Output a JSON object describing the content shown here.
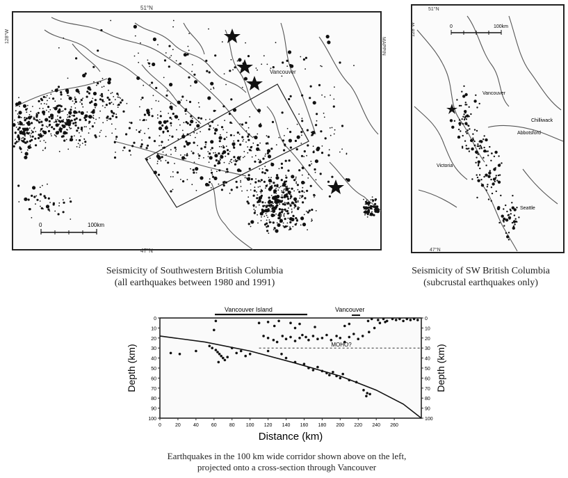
{
  "map_left": {
    "corner_label_top": "51°N",
    "corner_label_bottom": "47°N",
    "side_label_left": "128°W",
    "side_label_right": "MAPPIN",
    "city_label": "Vancouver",
    "scale": {
      "zero": "0",
      "label": "100km"
    },
    "caption_line1": "Seismicity of Southwestern British Columbia",
    "caption_line2": "(all earthquakes between 1980 and 1991)"
  },
  "map_right": {
    "corner_label_top": "51°N",
    "corner_label_bottom": "47°N",
    "side_label_left": "128°W",
    "scale": {
      "zero": "0",
      "label": "100km"
    },
    "cities": [
      "Vancouver",
      "Chilliwack",
      "Abbotsford",
      "Victoria",
      "Seattle"
    ],
    "caption_line1": "Seismicity of SW British Columbia",
    "caption_line2": "(subcrustal earthquakes only)"
  },
  "cross_section": {
    "top_labels": [
      "Vancouver Island",
      "Vancouver"
    ],
    "moho_label": "MOHO?",
    "caption_line1": "Earthquakes in the 100 km wide corridor shown above on the left,",
    "caption_line2": "projected onto a cross-section through Vancouver"
  },
  "chart_data": {
    "type": "scatter",
    "title": "",
    "xlabel": "Distance (km)",
    "ylabel": "Depth (km)",
    "ylabel_right": "Depth (km)",
    "xlim": [
      0,
      290
    ],
    "ylim": [
      0,
      100
    ],
    "y_inverted": true,
    "x_ticks": [
      "0",
      "20",
      "40",
      "60",
      "80",
      "100",
      "120",
      "140",
      "160",
      "180",
      "200",
      "220",
      "240",
      "260"
    ],
    "y_ticks": [
      "0",
      "10",
      "20",
      "30",
      "40",
      "50",
      "60",
      "70",
      "80",
      "90",
      "100"
    ],
    "y_ticks_right": [
      "0",
      "10",
      "20",
      "30",
      "40",
      "50",
      "60",
      "70",
      "80",
      "90",
      "100"
    ],
    "slab_curve": [
      [
        0,
        18
      ],
      [
        50,
        24
      ],
      [
        100,
        33
      ],
      [
        150,
        45
      ],
      [
        200,
        58
      ],
      [
        240,
        72
      ],
      [
        270,
        86
      ],
      [
        290,
        100
      ]
    ],
    "moho_line": [
      [
        110,
        30
      ],
      [
        290,
        30
      ]
    ],
    "points": [
      [
        12,
        35
      ],
      [
        22,
        36
      ],
      [
        40,
        33
      ],
      [
        55,
        28
      ],
      [
        58,
        30
      ],
      [
        62,
        32
      ],
      [
        64,
        34
      ],
      [
        66,
        36
      ],
      [
        68,
        38
      ],
      [
        70,
        40
      ],
      [
        72,
        42
      ],
      [
        65,
        44
      ],
      [
        75,
        39
      ],
      [
        80,
        30
      ],
      [
        85,
        35
      ],
      [
        90,
        33
      ],
      [
        95,
        38
      ],
      [
        100,
        36
      ],
      [
        60,
        12
      ],
      [
        62,
        3
      ],
      [
        110,
        5
      ],
      [
        120,
        4
      ],
      [
        127,
        8
      ],
      [
        132,
        3
      ],
      [
        145,
        5
      ],
      [
        115,
        18
      ],
      [
        120,
        20
      ],
      [
        126,
        22
      ],
      [
        130,
        24
      ],
      [
        136,
        18
      ],
      [
        140,
        21
      ],
      [
        145,
        19
      ],
      [
        150,
        23
      ],
      [
        155,
        20
      ],
      [
        158,
        17
      ],
      [
        162,
        19
      ],
      [
        165,
        22
      ],
      [
        170,
        18
      ],
      [
        175,
        21
      ],
      [
        180,
        20
      ],
      [
        185,
        17
      ],
      [
        190,
        22
      ],
      [
        196,
        18
      ],
      [
        200,
        20
      ],
      [
        205,
        24
      ],
      [
        210,
        19
      ],
      [
        215,
        16
      ],
      [
        220,
        21
      ],
      [
        225,
        18
      ],
      [
        232,
        14
      ],
      [
        238,
        10
      ],
      [
        231,
        3
      ],
      [
        235,
        1
      ],
      [
        242,
        2
      ],
      [
        248,
        1
      ],
      [
        252,
        3
      ],
      [
        258,
        1
      ],
      [
        262,
        2
      ],
      [
        266,
        1
      ],
      [
        270,
        3
      ],
      [
        274,
        1
      ],
      [
        278,
        2
      ],
      [
        282,
        1
      ],
      [
        286,
        2
      ],
      [
        244,
        5
      ],
      [
        250,
        4
      ],
      [
        160,
        46
      ],
      [
        165,
        50
      ],
      [
        170,
        52
      ],
      [
        175,
        49
      ],
      [
        180,
        53
      ],
      [
        185,
        55
      ],
      [
        188,
        57
      ],
      [
        192,
        54
      ],
      [
        196,
        58
      ],
      [
        200,
        60
      ],
      [
        203,
        56
      ],
      [
        210,
        62
      ],
      [
        218,
        64
      ],
      [
        226,
        72
      ],
      [
        230,
        75
      ],
      [
        229,
        78
      ],
      [
        233,
        76
      ],
      [
        140,
        40
      ],
      [
        150,
        44
      ],
      [
        120,
        33
      ],
      [
        135,
        36
      ],
      [
        205,
        8
      ],
      [
        210,
        6
      ],
      [
        150,
        10
      ],
      [
        155,
        6
      ],
      [
        172,
        9
      ]
    ]
  }
}
